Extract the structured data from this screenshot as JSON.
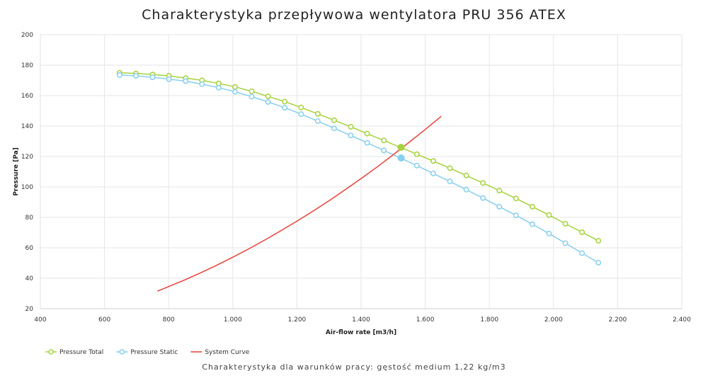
{
  "chart_data": {
    "type": "line",
    "title": "Charakterystyka przepływowa wentylatora PRU 356 ATEX",
    "subtitle": "Charakterystyka dla warunków pracy: gęstość medium 1,22 kg/m3",
    "xlabel": "Air-flow rate [m3/h]",
    "ylabel": "Pressure [Pa]",
    "xlim": [
      400,
      2400
    ],
    "ylim": [
      20,
      200
    ],
    "x_ticks": [
      400,
      600,
      800,
      1000,
      1200,
      1400,
      1600,
      1800,
      2000,
      2200,
      2400
    ],
    "x_tick_labels": [
      "400",
      "600",
      "800",
      "1.000",
      "1.200",
      "1.400",
      "1.600",
      "1.800",
      "2.000",
      "2.200",
      "2.400"
    ],
    "y_ticks": [
      20,
      40,
      60,
      80,
      100,
      120,
      140,
      160,
      180,
      200
    ],
    "grid": true,
    "legend_position": "bottom-left",
    "series": [
      {
        "name": "Pressure Total",
        "color": "#a6d23c",
        "marker": "circle-open",
        "x": [
          647,
          698,
          750,
          801,
          853,
          904,
          956,
          1007,
          1059,
          1110,
          1162,
          1213,
          1265,
          1316,
          1368,
          1419,
          1471,
          1522,
          1574,
          1625,
          1677,
          1728,
          1780,
          1831,
          1883,
          1934,
          1986,
          2037,
          2089,
          2140
        ],
        "y": [
          175,
          174.5,
          173.8,
          173,
          171.5,
          170,
          168,
          165.7,
          162.8,
          159.5,
          156,
          152.2,
          148,
          143.8,
          139.5,
          135,
          130.5,
          126,
          121.5,
          117,
          112.3,
          107.5,
          102.6,
          97.6,
          92.4,
          87,
          81.5,
          75.8,
          70.2,
          64.6
        ]
      },
      {
        "name": "Pressure Static",
        "color": "#87cfee",
        "marker": "circle-open",
        "x": [
          647,
          698,
          750,
          801,
          853,
          904,
          956,
          1007,
          1059,
          1110,
          1162,
          1213,
          1265,
          1316,
          1368,
          1419,
          1471,
          1522,
          1574,
          1625,
          1677,
          1728,
          1780,
          1831,
          1883,
          1934,
          1986,
          2037,
          2089,
          2140
        ],
        "y": [
          173.5,
          173,
          172,
          170.8,
          169.5,
          167.5,
          165.2,
          162.5,
          159.3,
          155.8,
          152,
          147.8,
          143.2,
          138.5,
          133.8,
          129,
          124,
          119,
          114,
          108.8,
          103.6,
          98.2,
          92.7,
          87,
          81.3,
          75.5,
          69.4,
          63,
          56.5,
          50.2
        ]
      },
      {
        "name": "System Curve",
        "color": "#e8413a",
        "marker": "none",
        "x": [
          765,
          800,
          850,
          900,
          950,
          1000,
          1050,
          1100,
          1150,
          1200,
          1250,
          1300,
          1350,
          1400,
          1450,
          1500,
          1550,
          1600,
          1650
        ],
        "y": [
          31.5,
          34.5,
          38.9,
          43.6,
          48.5,
          53.8,
          59.3,
          65.1,
          71.2,
          77.5,
          84.1,
          90.9,
          98.1,
          105.5,
          113.1,
          121.1,
          129.3,
          137.7,
          146.4
        ]
      }
    ],
    "operating_point": {
      "x": 1525,
      "total": 126,
      "static": 119
    }
  }
}
